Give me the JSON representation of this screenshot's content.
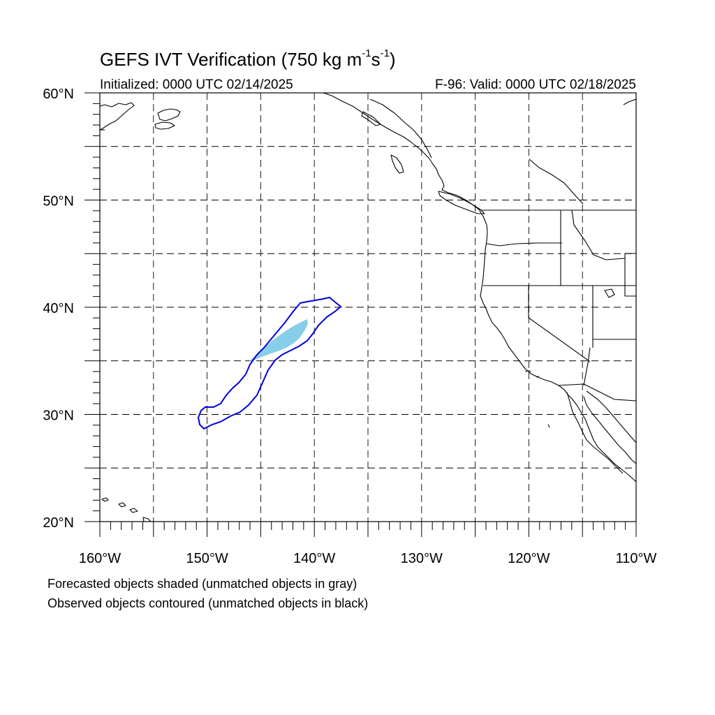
{
  "header": {
    "title_main": "GEFS IVT Verification (750 kg m",
    "title_exp1": "-1",
    "title_mid": "s",
    "title_exp2": "-1",
    "title_end": ")",
    "initialized": "Initialized: 0000 UTC 02/14/2025",
    "valid": "F-96: Valid: 0000 UTC 02/18/2025"
  },
  "map": {
    "lon_range": [
      -160,
      -110
    ],
    "lat_range": [
      20,
      60
    ],
    "grid_lines": "dashed",
    "x_ticks": [
      {
        "lon": -160,
        "label": "160°W"
      },
      {
        "lon": -150,
        "label": "150°W"
      },
      {
        "lon": -140,
        "label": "140°W"
      },
      {
        "lon": -130,
        "label": "130°W"
      },
      {
        "lon": -120,
        "label": "120°W"
      },
      {
        "lon": -110,
        "label": "110°W"
      }
    ],
    "y_ticks": [
      {
        "lat": 60,
        "label": "60°N"
      },
      {
        "lat": 50,
        "label": "50°N"
      },
      {
        "lat": 40,
        "label": "40°N"
      },
      {
        "lat": 30,
        "label": "30°N"
      },
      {
        "lat": 20,
        "label": "20°N"
      }
    ],
    "colors": {
      "forecast_matched_fill": "#87ceeb",
      "observed_matched_contour": "#0000dd",
      "coastline": "#000000"
    }
  },
  "captions": {
    "line1": "Forecasted objects shaded (unmatched objects in gray)",
    "line2": "Observed objects contoured (unmatched objects in black)"
  }
}
